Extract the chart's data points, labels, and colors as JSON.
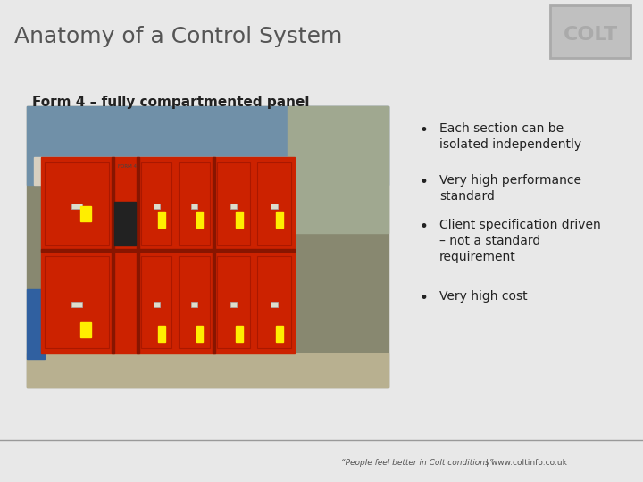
{
  "title": "Anatomy of a Control System",
  "subtitle": "Form 4 – fully compartmented panel",
  "header_bg": "#c0c0c0",
  "body_bg": "#e8e8e8",
  "footer_bg": "#c0c0c0",
  "title_color": "#555555",
  "subtitle_color": "#222222",
  "bullet_points": [
    "Each section can be\nisolated independently",
    "Very high performance\nstandard",
    "Client specification driven\n– not a standard\nrequirement",
    "Very high cost"
  ],
  "bullet_color": "#222222",
  "footer_text": "“People feel better in Colt conditions”",
  "footer_url": "| www.coltinfo.co.uk",
  "footer_color": "#555555"
}
